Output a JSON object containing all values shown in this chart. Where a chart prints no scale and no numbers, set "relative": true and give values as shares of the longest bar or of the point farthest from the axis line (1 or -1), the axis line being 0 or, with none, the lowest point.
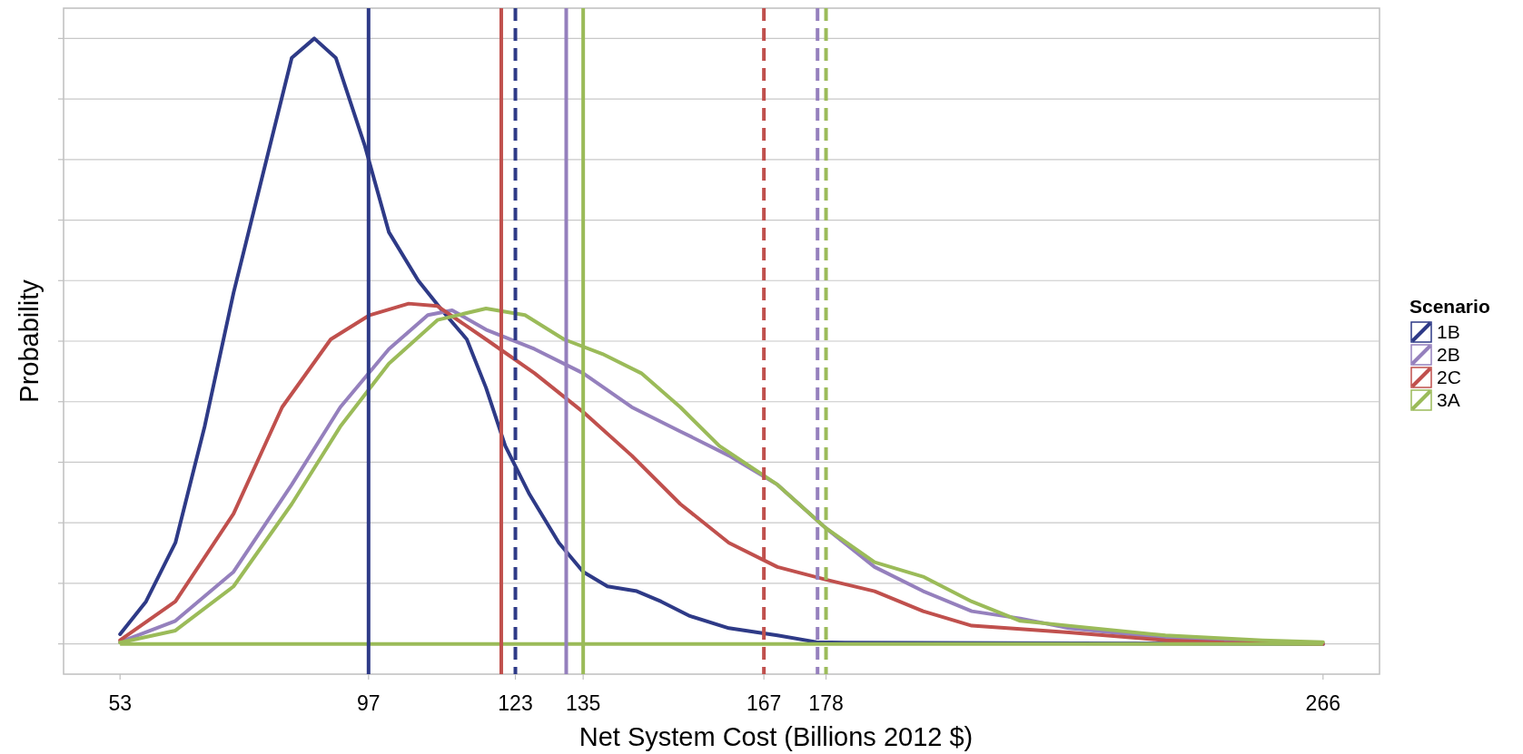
{
  "chart_data": {
    "type": "line",
    "relative": true,
    "xlabel": "Net System Cost (Billions 2012 $)",
    "ylabel": "Probability",
    "legend_title": "Scenario",
    "legend": "right",
    "grid": "y",
    "xlim": [
      43,
      276
    ],
    "xticks": [
      53,
      97,
      123,
      135,
      167,
      178,
      266
    ],
    "series": [
      {
        "name": "1B",
        "color": "#2e3a87",
        "x": [
          53,
          57.6,
          62.8,
          68,
          73.1,
          78.3,
          83.4,
          87.4,
          91.2,
          96.3,
          100.6,
          105.8,
          110.1,
          114.4,
          117.8,
          121.2,
          125.5,
          130.7,
          135,
          139.3,
          144.5,
          148.8,
          153.9,
          160.8,
          169.4,
          176.3,
          181.4,
          266
        ],
        "values": [
          0.016,
          0.07,
          0.167,
          0.36,
          0.58,
          0.776,
          0.968,
          1,
          0.968,
          0.824,
          0.68,
          0.6,
          0.55,
          0.503,
          0.423,
          0.327,
          0.247,
          0.167,
          0.119,
          0.095,
          0.087,
          0.07,
          0.046,
          0.026,
          0.014,
          0.003,
          0.002,
          0
        ]
      },
      {
        "name": "2B",
        "color": "#9580bd",
        "x": [
          53,
          62.8,
          73.1,
          83.4,
          92,
          100.6,
          107.5,
          111.8,
          117.8,
          126.4,
          135,
          143.6,
          152.2,
          160.8,
          169.4,
          178,
          186.6,
          195.2,
          203.8,
          212.4,
          221,
          238.1,
          255.3,
          266
        ],
        "values": [
          0.003,
          0.038,
          0.119,
          0.263,
          0.391,
          0.487,
          0.543,
          0.551,
          0.519,
          0.487,
          0.447,
          0.391,
          0.351,
          0.311,
          0.263,
          0.191,
          0.127,
          0.087,
          0.054,
          0.042,
          0.026,
          0.01,
          null,
          0
        ]
      },
      {
        "name": "2C",
        "color": "#c0504d",
        "x": [
          53,
          62.8,
          73.1,
          81.7,
          90.3,
          97.2,
          104.1,
          109.2,
          117.8,
          126.4,
          135,
          143.6,
          152.2,
          160.8,
          169.4,
          178,
          186.6,
          195.2,
          203.8,
          221,
          238.1,
          248.5,
          266
        ],
        "values": [
          0.006,
          0.07,
          0.215,
          0.391,
          0.503,
          0.543,
          0.562,
          0.558,
          0.503,
          0.447,
          0.383,
          0.311,
          0.231,
          0.167,
          0.127,
          0.106,
          0.087,
          0.054,
          0.03,
          0.019,
          0.006,
          0.002,
          0
        ]
      },
      {
        "name": "3A",
        "color": "#9bbb59",
        "x": [
          53,
          62.8,
          73.1,
          83.4,
          92,
          100.6,
          109.2,
          117.8,
          124.7,
          131.6,
          138.4,
          145.3,
          152.2,
          159.1,
          169.4,
          178,
          186.6,
          195.2,
          203.8,
          212.4,
          221,
          238.1,
          255.3,
          266
        ],
        "values": [
          0.002,
          0.022,
          0.095,
          0.231,
          0.359,
          0.463,
          0.535,
          0.554,
          0.543,
          0.503,
          0.479,
          0.447,
          0.391,
          0.327,
          0.263,
          0.191,
          0.135,
          0.111,
          0.07,
          0.038,
          0.03,
          0.014,
          0.006,
          0.003
        ]
      }
    ],
    "ref_lines": [
      {
        "axis": "y",
        "value": 0,
        "color": "#9bbb59",
        "line_style": "solid"
      },
      {
        "axis": "x",
        "value": 97,
        "color": "#2e3a87",
        "line_style": "solid"
      },
      {
        "axis": "x",
        "value": 120.5,
        "color": "#c0504d",
        "line_style": "solid"
      },
      {
        "axis": "x",
        "value": 123,
        "color": "#2e3a87",
        "line_style": "dashed"
      },
      {
        "axis": "x",
        "value": 132,
        "color": "#9580bd",
        "line_style": "solid"
      },
      {
        "axis": "x",
        "value": 135,
        "color": "#9bbb59",
        "line_style": "solid"
      },
      {
        "axis": "x",
        "value": 167,
        "color": "#c0504d",
        "line_style": "dashed"
      },
      {
        "axis": "x",
        "value": 176.5,
        "color": "#9580bd",
        "line_style": "dashed"
      },
      {
        "axis": "x",
        "value": 178,
        "color": "#9bbb59",
        "line_style": "dashed"
      }
    ]
  }
}
